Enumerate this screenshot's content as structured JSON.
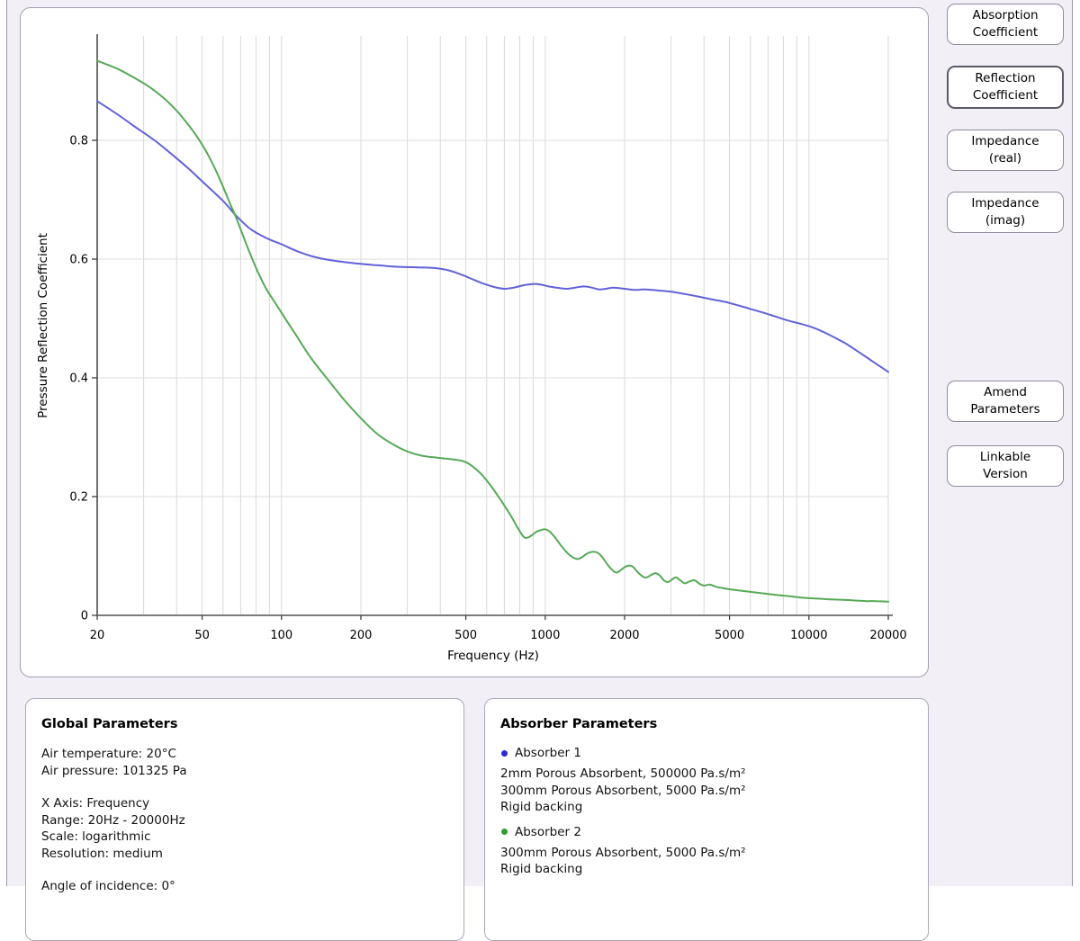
{
  "page": {
    "background_color": "#f2eff7",
    "frame_line_color": "#9a97a6"
  },
  "view_buttons": [
    {
      "label": "Absorption\nCoefficient",
      "selected": false
    },
    {
      "label": "Reflection\nCoefficient",
      "selected": true
    },
    {
      "label": "Impedance\n(real)",
      "selected": false
    },
    {
      "label": "Impedance\n(imag)",
      "selected": false
    }
  ],
  "action_buttons": [
    {
      "label": "Amend\nParameters"
    },
    {
      "label": "Linkable\nVersion"
    }
  ],
  "global_parameters": {
    "title": "Global Parameters",
    "groups": [
      [
        "Air temperature: 20°C",
        "Air pressure: 101325 Pa"
      ],
      [
        "X Axis: Frequency",
        "Range: 20Hz - 20000Hz",
        "Scale: logarithmic",
        "Resolution: medium"
      ],
      [
        "Angle of incidence: 0°"
      ]
    ]
  },
  "absorber_parameters": {
    "title": "Absorber Parameters",
    "absorbers": [
      {
        "name": "Absorber 1",
        "color": "#2b2bd0",
        "layers": [
          "2mm Porous Absorbent, 500000 Pa.s/m²",
          "300mm Porous Absorbent, 5000 Pa.s/m²",
          "Rigid backing"
        ]
      },
      {
        "name": "Absorber 2",
        "color": "#2f9e2f",
        "layers": [
          "300mm Porous Absorbent, 5000 Pa.s/m²",
          "Rigid backing"
        ]
      }
    ]
  },
  "chart_data": {
    "type": "line",
    "title": "",
    "xlabel": "Frequency (Hz)",
    "ylabel": "Pressure Reflection Coefficient",
    "x_scale": "log",
    "xlim": [
      20,
      20000
    ],
    "ylim": [
      0,
      0.976
    ],
    "grid": true,
    "grid_color": "#d9d9d9",
    "axis_color": "#4a4a4a",
    "x_ticks": [
      20,
      50,
      100,
      200,
      500,
      1000,
      2000,
      5000,
      10000,
      20000
    ],
    "x_tick_labels": [
      "20",
      "50",
      "100",
      "200",
      "500",
      "1000",
      "2000",
      "5000",
      "10000",
      "20000"
    ],
    "y_ticks": [
      0,
      0.2,
      0.4,
      0.6,
      0.8
    ],
    "y_tick_labels": [
      "0",
      "0.2",
      "0.4",
      "0.6",
      "0.8"
    ],
    "series": [
      {
        "name": "Absorber 1",
        "color": "#6262d9",
        "points": [
          [
            20,
            0.866
          ],
          [
            24,
            0.843
          ],
          [
            28,
            0.822
          ],
          [
            33,
            0.8
          ],
          [
            38,
            0.778
          ],
          [
            44,
            0.754
          ],
          [
            50,
            0.731
          ],
          [
            60,
            0.698
          ],
          [
            67,
            0.674
          ],
          [
            75,
            0.653
          ],
          [
            82,
            0.642
          ],
          [
            90,
            0.633
          ],
          [
            100,
            0.625
          ],
          [
            115,
            0.613
          ],
          [
            135,
            0.603
          ],
          [
            160,
            0.597
          ],
          [
            200,
            0.592
          ],
          [
            240,
            0.589
          ],
          [
            280,
            0.587
          ],
          [
            330,
            0.586
          ],
          [
            380,
            0.585
          ],
          [
            430,
            0.581
          ],
          [
            480,
            0.574
          ],
          [
            530,
            0.566
          ],
          [
            580,
            0.559
          ],
          [
            640,
            0.553
          ],
          [
            700,
            0.55
          ],
          [
            760,
            0.552
          ],
          [
            830,
            0.556
          ],
          [
            900,
            0.558
          ],
          [
            960,
            0.557
          ],
          [
            1030,
            0.554
          ],
          [
            1100,
            0.552
          ],
          [
            1200,
            0.55
          ],
          [
            1300,
            0.552
          ],
          [
            1400,
            0.554
          ],
          [
            1500,
            0.552
          ],
          [
            1600,
            0.549
          ],
          [
            1700,
            0.55
          ],
          [
            1800,
            0.552
          ],
          [
            1900,
            0.551
          ],
          [
            2000,
            0.55
          ],
          [
            2200,
            0.548
          ],
          [
            2400,
            0.549
          ],
          [
            2700,
            0.547
          ],
          [
            3000,
            0.545
          ],
          [
            3400,
            0.541
          ],
          [
            3800,
            0.537
          ],
          [
            4300,
            0.532
          ],
          [
            4800,
            0.528
          ],
          [
            5400,
            0.522
          ],
          [
            6000,
            0.516
          ],
          [
            6700,
            0.51
          ],
          [
            7500,
            0.503
          ],
          [
            8400,
            0.496
          ],
          [
            9300,
            0.491
          ],
          [
            10000,
            0.487
          ],
          [
            11000,
            0.48
          ],
          [
            12000,
            0.472
          ],
          [
            13000,
            0.464
          ],
          [
            14000,
            0.456
          ],
          [
            15500,
            0.443
          ],
          [
            17000,
            0.431
          ],
          [
            18500,
            0.42
          ],
          [
            20000,
            0.41
          ]
        ]
      },
      {
        "name": "Absorber 2",
        "color": "#57a957",
        "points": [
          [
            20,
            0.934
          ],
          [
            24,
            0.92
          ],
          [
            28,
            0.904
          ],
          [
            32,
            0.888
          ],
          [
            36,
            0.87
          ],
          [
            40,
            0.85
          ],
          [
            44,
            0.828
          ],
          [
            48,
            0.805
          ],
          [
            52,
            0.78
          ],
          [
            56,
            0.752
          ],
          [
            60,
            0.722
          ],
          [
            64,
            0.692
          ],
          [
            67,
            0.672
          ],
          [
            70,
            0.65
          ],
          [
            74,
            0.622
          ],
          [
            78,
            0.597
          ],
          [
            83,
            0.57
          ],
          [
            88,
            0.548
          ],
          [
            95,
            0.525
          ],
          [
            105,
            0.495
          ],
          [
            115,
            0.468
          ],
          [
            130,
            0.432
          ],
          [
            150,
            0.397
          ],
          [
            175,
            0.36
          ],
          [
            200,
            0.332
          ],
          [
            230,
            0.306
          ],
          [
            260,
            0.29
          ],
          [
            300,
            0.276
          ],
          [
            340,
            0.269
          ],
          [
            380,
            0.266
          ],
          [
            420,
            0.264
          ],
          [
            460,
            0.262
          ],
          [
            500,
            0.258
          ],
          [
            540,
            0.248
          ],
          [
            580,
            0.235
          ],
          [
            620,
            0.219
          ],
          [
            660,
            0.202
          ],
          [
            700,
            0.185
          ],
          [
            740,
            0.168
          ],
          [
            780,
            0.15
          ],
          [
            810,
            0.138
          ],
          [
            835,
            0.131
          ],
          [
            860,
            0.131
          ],
          [
            890,
            0.135
          ],
          [
            930,
            0.141
          ],
          [
            970,
            0.144
          ],
          [
            1000,
            0.145
          ],
          [
            1040,
            0.141
          ],
          [
            1090,
            0.131
          ],
          [
            1150,
            0.117
          ],
          [
            1220,
            0.104
          ],
          [
            1280,
            0.097
          ],
          [
            1330,
            0.095
          ],
          [
            1380,
            0.098
          ],
          [
            1440,
            0.104
          ],
          [
            1510,
            0.107
          ],
          [
            1570,
            0.106
          ],
          [
            1640,
            0.099
          ],
          [
            1720,
            0.086
          ],
          [
            1800,
            0.076
          ],
          [
            1860,
            0.072
          ],
          [
            1920,
            0.075
          ],
          [
            2000,
            0.081
          ],
          [
            2080,
            0.084
          ],
          [
            2160,
            0.081
          ],
          [
            2250,
            0.072
          ],
          [
            2350,
            0.065
          ],
          [
            2430,
            0.064
          ],
          [
            2520,
            0.068
          ],
          [
            2620,
            0.071
          ],
          [
            2720,
            0.067
          ],
          [
            2820,
            0.059
          ],
          [
            2920,
            0.056
          ],
          [
            3020,
            0.06
          ],
          [
            3130,
            0.064
          ],
          [
            3250,
            0.059
          ],
          [
            3380,
            0.054
          ],
          [
            3520,
            0.057
          ],
          [
            3680,
            0.059
          ],
          [
            3850,
            0.053
          ],
          [
            4000,
            0.05
          ],
          [
            4200,
            0.052
          ],
          [
            4450,
            0.048
          ],
          [
            4700,
            0.046
          ],
          [
            5000,
            0.044
          ],
          [
            5400,
            0.042
          ],
          [
            5900,
            0.04
          ],
          [
            6400,
            0.038
          ],
          [
            7000,
            0.036
          ],
          [
            7700,
            0.034
          ],
          [
            8500,
            0.032
          ],
          [
            9300,
            0.03
          ],
          [
            10000,
            0.029
          ],
          [
            11000,
            0.028
          ],
          [
            12000,
            0.027
          ],
          [
            13500,
            0.026
          ],
          [
            15000,
            0.025
          ],
          [
            16500,
            0.024
          ],
          [
            18000,
            0.024
          ],
          [
            20000,
            0.023
          ]
        ]
      }
    ]
  }
}
